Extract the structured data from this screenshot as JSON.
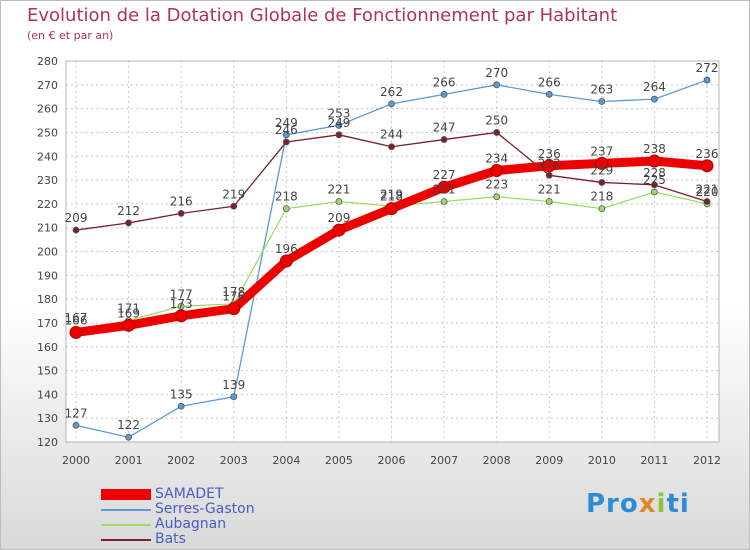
{
  "title": "Evolution de la Dotation Globale de Fonctionnement par Habitant",
  "subtitle": "(en € et par an)",
  "logo": {
    "p1": "Pro",
    "p2": "x",
    "p3": "i",
    "p4": "ti"
  },
  "chart_data": {
    "type": "line",
    "title": "Evolution de la Dotation Globale de Fonctionnement par Habitant",
    "subtitle": "(en € et par an)",
    "xlabel": "",
    "ylabel": "",
    "categories": [
      "2000",
      "2001",
      "2002",
      "2003",
      "2004",
      "2005",
      "2006",
      "2007",
      "2008",
      "2009",
      "2010",
      "2011",
      "2012"
    ],
    "ylim": [
      120,
      280
    ],
    "yticks": [
      120,
      130,
      140,
      150,
      160,
      170,
      180,
      190,
      200,
      210,
      220,
      230,
      240,
      250,
      260,
      270,
      280
    ],
    "grid": true,
    "legend_position": "bottom-left",
    "series": [
      {
        "name": "SAMADET",
        "color": "#ee0000",
        "thick": true,
        "values": [
          166,
          169,
          173,
          176,
          196,
          209,
          218,
          227,
          234,
          236,
          237,
          238,
          236
        ]
      },
      {
        "name": "Serres-Gaston",
        "color": "#5a9bd5",
        "thick": false,
        "values": [
          127,
          122,
          135,
          139,
          249,
          253,
          262,
          266,
          270,
          266,
          263,
          264,
          272
        ]
      },
      {
        "name": "Aubagnan",
        "color": "#99dd66",
        "thick": false,
        "values": [
          167,
          171,
          177,
          178,
          218,
          221,
          219,
          221,
          223,
          221,
          218,
          225,
          220
        ]
      },
      {
        "name": "Bats",
        "color": "#7a1f2b",
        "thick": false,
        "values": [
          209,
          212,
          216,
          219,
          246,
          249,
          244,
          247,
          250,
          232,
          229,
          228,
          221
        ]
      }
    ]
  }
}
